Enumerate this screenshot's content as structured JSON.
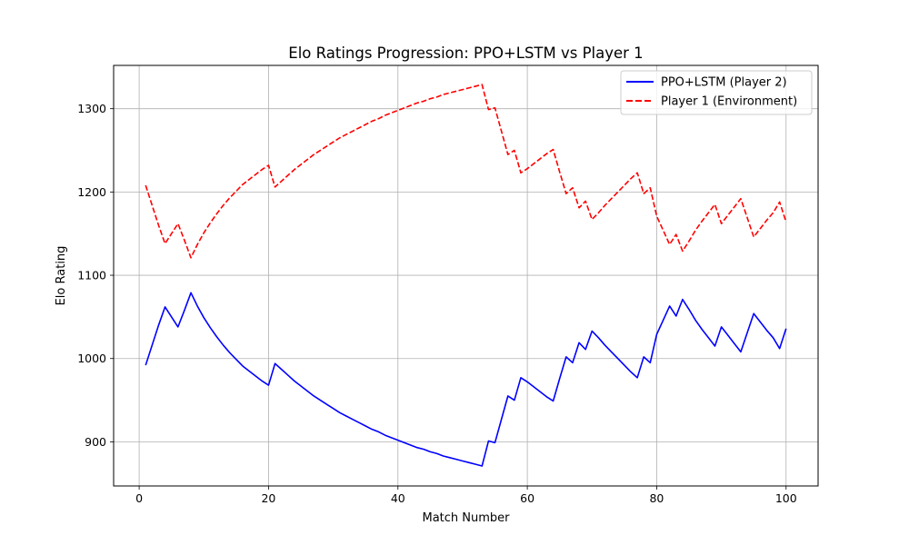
{
  "chart_data": {
    "type": "line",
    "title": "Elo Ratings Progression: PPO+LSTM vs Player 1",
    "xlabel": "Match Number",
    "ylabel": "Elo Rating",
    "xlim": [
      -3.95,
      104.95
    ],
    "ylim": [
      847,
      1352
    ],
    "xticks": [
      0,
      20,
      40,
      60,
      80,
      100
    ],
    "yticks": [
      900,
      1000,
      1100,
      1200,
      1300
    ],
    "grid": true,
    "legend_position": "top-right",
    "x": [
      1,
      2,
      3,
      4,
      5,
      6,
      7,
      8,
      9,
      10,
      11,
      12,
      13,
      14,
      15,
      16,
      17,
      18,
      19,
      20,
      21,
      22,
      23,
      24,
      25,
      26,
      27,
      28,
      29,
      30,
      31,
      32,
      33,
      34,
      35,
      36,
      37,
      38,
      39,
      40,
      41,
      42,
      43,
      44,
      45,
      46,
      47,
      48,
      49,
      50,
      51,
      52,
      53,
      54,
      55,
      56,
      57,
      58,
      59,
      60,
      61,
      62,
      63,
      64,
      65,
      66,
      67,
      68,
      69,
      70,
      71,
      72,
      73,
      74,
      75,
      76,
      77,
      78,
      79,
      80,
      81,
      82,
      83,
      84,
      85,
      86,
      87,
      88,
      89,
      90,
      91,
      92,
      93,
      94,
      95,
      96,
      97,
      98,
      99,
      100
    ],
    "series": [
      {
        "name": "PPO+LSTM (Player 2)",
        "color": "#0000ff",
        "style": "solid",
        "values": [
          992,
          1016,
          1040,
          1062,
          1050,
          1038,
          1058,
          1079,
          1063,
          1049,
          1037,
          1026,
          1016,
          1007,
          999,
          991,
          985,
          979,
          973,
          968,
          994,
          987,
          980,
          973,
          967,
          961,
          955,
          950,
          945,
          940,
          935,
          931,
          927,
          923,
          919,
          915,
          912,
          908,
          905,
          902,
          899,
          896,
          893,
          891,
          888,
          886,
          883,
          881,
          879,
          877,
          875,
          873,
          871,
          901,
          899,
          927,
          955,
          950,
          977,
          972,
          966,
          960,
          954,
          949,
          976,
          1002,
          995,
          1019,
          1011,
          1033,
          1025,
          1016,
          1008,
          1000,
          992,
          984,
          977,
          1002,
          995,
          1029,
          1046,
          1063,
          1051,
          1071,
          1059,
          1046,
          1035,
          1025,
          1015,
          1038,
          1028,
          1018,
          1008,
          1031,
          1054,
          1044,
          1034,
          1025,
          1012,
          1036
        ]
      },
      {
        "name": "Player 1 (Environment)",
        "color": "#ff0000",
        "style": "dashed",
        "values": [
          1208,
          1184,
          1160,
          1138,
          1150,
          1162,
          1142,
          1121,
          1137,
          1151,
          1163,
          1174,
          1184,
          1193,
          1201,
          1209,
          1215,
          1221,
          1227,
          1232,
          1206,
          1213,
          1220,
          1227,
          1233,
          1239,
          1245,
          1250,
          1255,
          1260,
          1265,
          1269,
          1273,
          1277,
          1281,
          1285,
          1288,
          1292,
          1295,
          1298,
          1301,
          1304,
          1307,
          1309,
          1312,
          1314,
          1317,
          1319,
          1321,
          1323,
          1325,
          1327,
          1329,
          1299,
          1301,
          1273,
          1245,
          1250,
          1223,
          1228,
          1234,
          1240,
          1246,
          1251,
          1224,
          1198,
          1205,
          1181,
          1189,
          1167,
          1175,
          1184,
          1192,
          1200,
          1208,
          1216,
          1223,
          1198,
          1205,
          1171,
          1154,
          1137,
          1149,
          1129,
          1141,
          1154,
          1165,
          1175,
          1185,
          1162,
          1172,
          1182,
          1192,
          1169,
          1146,
          1156,
          1166,
          1175,
          1188,
          1164
        ]
      }
    ]
  }
}
